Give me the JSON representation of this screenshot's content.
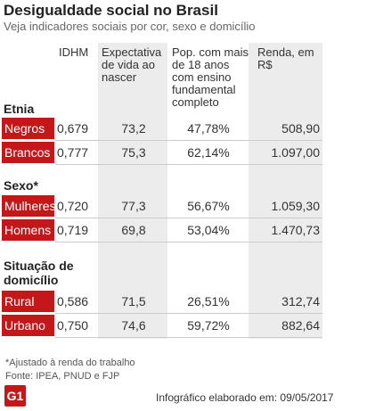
{
  "header": {
    "title": "Desigualdade social no Brasil",
    "subtitle": "Veja indicadores sociais por cor, sexo e domicílio"
  },
  "table": {
    "columns": [
      "IDHM",
      "Expectativa de vida ao nascer",
      "Pop. com mais de 18 anos com ensino fundamental completo",
      "Renda, em R$"
    ],
    "sections": [
      {
        "title": "Etnia",
        "rows": [
          [
            "Negros",
            "0,679",
            "73,2",
            "47,78%",
            "508,90"
          ],
          [
            "Brancos",
            "0,777",
            "75,3",
            "62,14%",
            "1.097,00"
          ]
        ]
      },
      {
        "title": "Sexo*",
        "rows": [
          [
            "Mulheres",
            "0,720",
            "77,3",
            "56,67%",
            "1.059,30"
          ],
          [
            "Homens",
            "0,719",
            "69,8",
            "53,04%",
            "1.470,73"
          ]
        ]
      },
      {
        "title": "Situação de domicílio",
        "rows": [
          [
            "Rural",
            "0,586",
            "71,5",
            "26,51%",
            "312,74"
          ],
          [
            "Urbano",
            "0,750",
            "74,6",
            "59,72%",
            "882,64"
          ]
        ]
      }
    ]
  },
  "footer": {
    "notes": [
      "*Ajustado à renda do trabalho",
      "Fonte: IPEA, PNUD e FJP"
    ],
    "credit": "Infográfico elaborado em: 09/05/2017",
    "logo": "G1"
  }
}
